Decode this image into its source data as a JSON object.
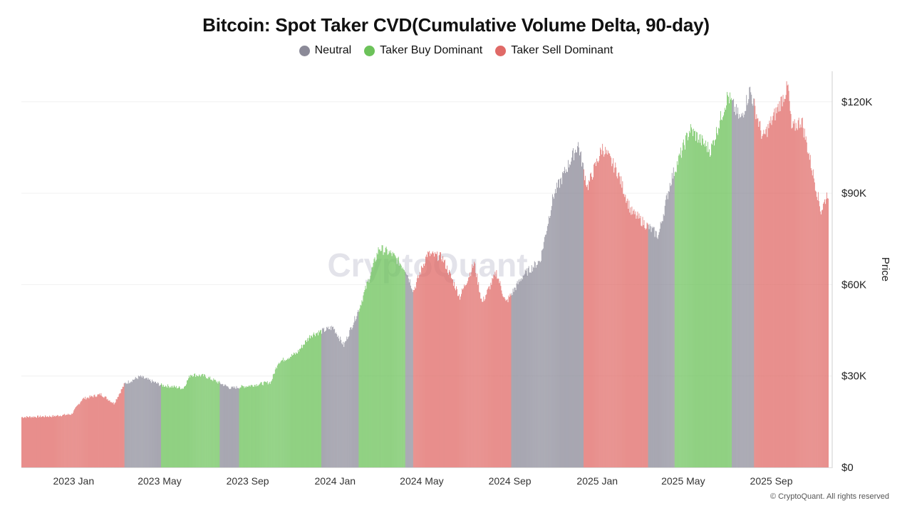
{
  "title": "Bitcoin: Spot Taker CVD(Cumulative Volume Delta, 90-day)",
  "legend": [
    {
      "label": "Neutral",
      "color": "#8b8a98"
    },
    {
      "label": "Taker Buy Dominant",
      "color": "#6cc25a"
    },
    {
      "label": "Taker Sell Dominant",
      "color": "#e06a67"
    }
  ],
  "watermark": "CryptoQuant",
  "copyright": "© CryptoQuant. All rights reserved",
  "chart_data": {
    "type": "bar",
    "title": "Bitcoin: Spot Taker CVD(Cumulative Volume Delta, 90-day)",
    "ylabel": "Price",
    "xlabel": "",
    "ylim": [
      0,
      130000
    ],
    "xlim": [
      "2022-11-01",
      "2025-12-01"
    ],
    "y_ticks": [
      {
        "value": 0,
        "label": "$0"
      },
      {
        "value": 30000,
        "label": "$30K"
      },
      {
        "value": 60000,
        "label": "$60K"
      },
      {
        "value": 90000,
        "label": "$90K"
      },
      {
        "value": 120000,
        "label": "$120K"
      }
    ],
    "x_ticks": [
      {
        "date": "2023-01-01",
        "label": "2023 Jan"
      },
      {
        "date": "2023-05-01",
        "label": "2023 May"
      },
      {
        "date": "2023-09-01",
        "label": "2023 Sep"
      },
      {
        "date": "2024-01-01",
        "label": "2024 Jan"
      },
      {
        "date": "2024-05-01",
        "label": "2024 May"
      },
      {
        "date": "2024-09-01",
        "label": "2024 Sep"
      },
      {
        "date": "2025-01-01",
        "label": "2025 Jan"
      },
      {
        "date": "2025-05-01",
        "label": "2025 May"
      },
      {
        "date": "2025-09-01",
        "label": "2025 Sep"
      }
    ],
    "price_points": [
      [
        "2022-11-01",
        16500
      ],
      [
        "2022-12-15",
        16800
      ],
      [
        "2023-01-10",
        17500
      ],
      [
        "2023-01-25",
        22500
      ],
      [
        "2023-02-20",
        24000
      ],
      [
        "2023-03-10",
        21000
      ],
      [
        "2023-03-25",
        27500
      ],
      [
        "2023-04-15",
        29800
      ],
      [
        "2023-05-15",
        27000
      ],
      [
        "2023-06-15",
        26000
      ],
      [
        "2023-06-25",
        30500
      ],
      [
        "2023-07-15",
        30000
      ],
      [
        "2023-08-20",
        26000
      ],
      [
        "2023-09-15",
        26800
      ],
      [
        "2023-10-15",
        28000
      ],
      [
        "2023-10-25",
        34500
      ],
      [
        "2023-11-20",
        37500
      ],
      [
        "2023-12-10",
        43500
      ],
      [
        "2024-01-10",
        46000
      ],
      [
        "2024-01-25",
        40000
      ],
      [
        "2024-02-15",
        52000
      ],
      [
        "2024-03-14",
        72000
      ],
      [
        "2024-04-01",
        70000
      ],
      [
        "2024-04-20",
        65000
      ],
      [
        "2024-05-01",
        58000
      ],
      [
        "2024-05-20",
        70000
      ],
      [
        "2024-06-10",
        69000
      ],
      [
        "2024-07-05",
        56000
      ],
      [
        "2024-07-25",
        67000
      ],
      [
        "2024-08-05",
        54000
      ],
      [
        "2024-08-25",
        64000
      ],
      [
        "2024-09-07",
        54000
      ],
      [
        "2024-10-01",
        63000
      ],
      [
        "2024-10-25",
        68000
      ],
      [
        "2024-11-12",
        89000
      ],
      [
        "2024-12-17",
        106000
      ],
      [
        "2024-12-30",
        92000
      ],
      [
        "2025-01-20",
        105000
      ],
      [
        "2025-02-10",
        97000
      ],
      [
        "2025-03-01",
        84000
      ],
      [
        "2025-04-08",
        76000
      ],
      [
        "2025-04-25",
        94000
      ],
      [
        "2025-05-22",
        111000
      ],
      [
        "2025-06-20",
        104000
      ],
      [
        "2025-07-14",
        122000
      ],
      [
        "2025-08-01",
        114000
      ],
      [
        "2025-08-14",
        124000
      ],
      [
        "2025-09-01",
        108000
      ],
      [
        "2025-09-20",
        117000
      ],
      [
        "2025-10-06",
        125000
      ],
      [
        "2025-10-11",
        111000
      ],
      [
        "2025-10-25",
        114000
      ],
      [
        "2025-11-21",
        84000
      ],
      [
        "2025-11-30",
        90000
      ]
    ],
    "regimes": [
      {
        "start": "2022-11-01",
        "end": "2023-03-25",
        "state": "Taker Sell Dominant"
      },
      {
        "start": "2023-03-25",
        "end": "2023-05-15",
        "state": "Neutral"
      },
      {
        "start": "2023-05-15",
        "end": "2023-08-05",
        "state": "Taker Buy Dominant"
      },
      {
        "start": "2023-08-05",
        "end": "2023-09-01",
        "state": "Neutral"
      },
      {
        "start": "2023-09-01",
        "end": "2023-12-25",
        "state": "Taker Buy Dominant"
      },
      {
        "start": "2023-12-25",
        "end": "2024-02-15",
        "state": "Neutral"
      },
      {
        "start": "2024-02-15",
        "end": "2024-04-20",
        "state": "Taker Buy Dominant"
      },
      {
        "start": "2024-04-20",
        "end": "2024-05-01",
        "state": "Neutral"
      },
      {
        "start": "2024-05-01",
        "end": "2024-09-15",
        "state": "Taker Sell Dominant"
      },
      {
        "start": "2024-09-15",
        "end": "2024-12-25",
        "state": "Neutral"
      },
      {
        "start": "2024-12-25",
        "end": "2025-03-25",
        "state": "Taker Sell Dominant"
      },
      {
        "start": "2025-03-25",
        "end": "2025-05-01",
        "state": "Neutral"
      },
      {
        "start": "2025-05-01",
        "end": "2025-07-20",
        "state": "Taker Buy Dominant"
      },
      {
        "start": "2025-07-20",
        "end": "2025-08-20",
        "state": "Neutral"
      },
      {
        "start": "2025-08-20",
        "end": "2025-11-30",
        "state": "Taker Sell Dominant"
      }
    ]
  }
}
